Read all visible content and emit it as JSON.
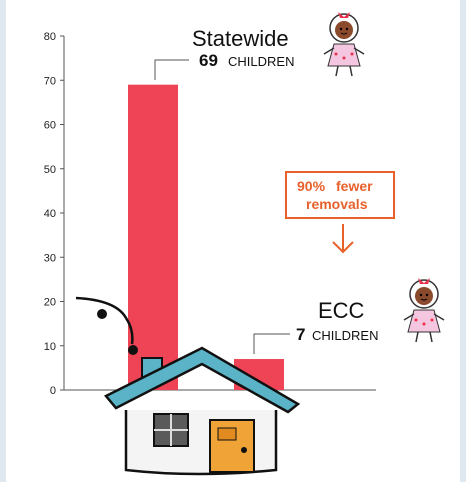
{
  "chart_data": {
    "type": "bar",
    "categories": [
      "Statewide",
      "ECC"
    ],
    "values": [
      69,
      7
    ],
    "ylim": [
      0,
      80
    ],
    "yticks": [
      0,
      10,
      20,
      30,
      40,
      50,
      60,
      70,
      80
    ],
    "grid": false,
    "bar_color": "#ef4455",
    "labels": [
      {
        "name": "Statewide",
        "value": "69",
        "unit": "CHILDREN"
      },
      {
        "name": "ECC",
        "value": "7",
        "unit": "CHILDREN"
      }
    ],
    "callout": {
      "highlight": "90%",
      "text_line1_rest": "fewer",
      "text_line2": "removals",
      "color": "#e8612c"
    }
  },
  "colors": {
    "background": "#dfe7ef",
    "panel": "#ffffff",
    "roof": "#5bb3c8",
    "door": "#f0a336"
  },
  "icons": [
    "girl-doll-icon",
    "house-icon",
    "down-arrow-icon"
  ]
}
